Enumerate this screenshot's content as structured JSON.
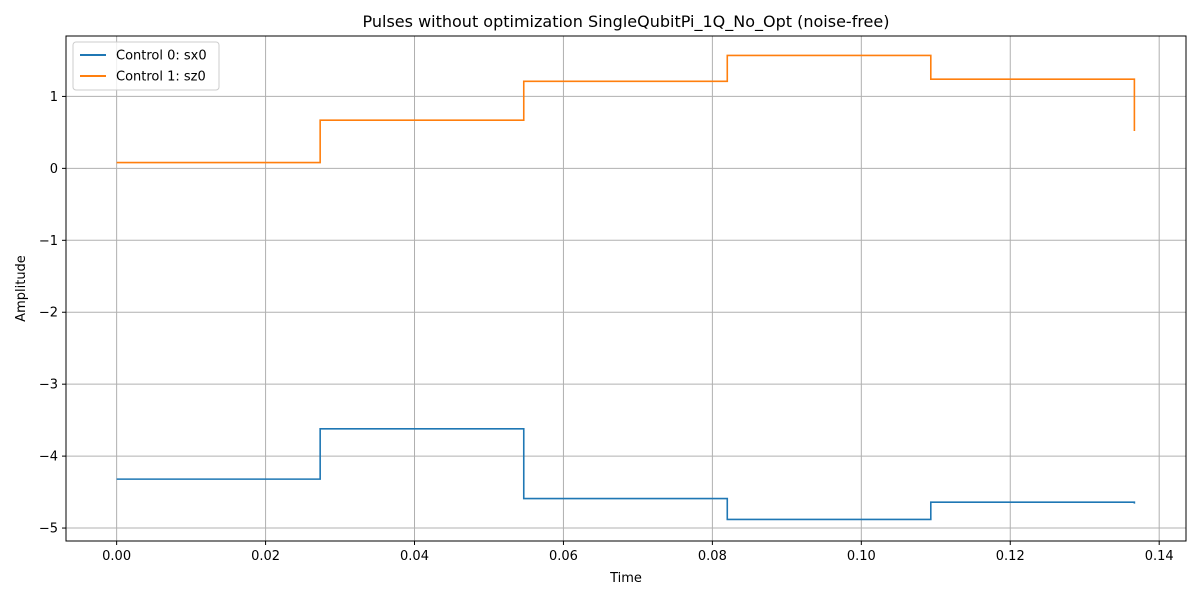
{
  "chart_data": {
    "type": "line",
    "step": "post",
    "title": "Pulses without optimization SingleQubitPi_1Q_No_Opt (noise-free)",
    "xlabel": "Time",
    "ylabel": "Amplitude",
    "xlim": [
      -0.0068,
      0.1436
    ],
    "ylim": [
      -5.18,
      1.84
    ],
    "xticks": [
      0.0,
      0.02,
      0.04,
      0.06,
      0.08,
      0.1,
      0.12,
      0.14
    ],
    "xtick_labels": [
      "0.00",
      "0.02",
      "0.04",
      "0.06",
      "0.08",
      "0.10",
      "0.12",
      "0.14"
    ],
    "yticks": [
      -5,
      -4,
      -3,
      -2,
      -1,
      0,
      1
    ],
    "ytick_labels": [
      "−5",
      "−4",
      "−3",
      "−2",
      "−1",
      "0",
      "1"
    ],
    "grid": true,
    "legend_position": "top-left",
    "series": [
      {
        "name": "Control 0: sx0",
        "color": "#1f77b4",
        "x": [
          0.0,
          0.02733,
          0.05467,
          0.082,
          0.10933,
          0.13667
        ],
        "values": [
          -4.32,
          -3.62,
          -4.59,
          -4.88,
          -4.64,
          -4.66
        ]
      },
      {
        "name": "Control 1: sz0",
        "color": "#ff7f0e",
        "x": [
          0.0,
          0.02733,
          0.05467,
          0.082,
          0.10933,
          0.13667
        ],
        "values": [
          0.08,
          0.67,
          1.21,
          1.57,
          1.24,
          0.52
        ]
      }
    ]
  }
}
